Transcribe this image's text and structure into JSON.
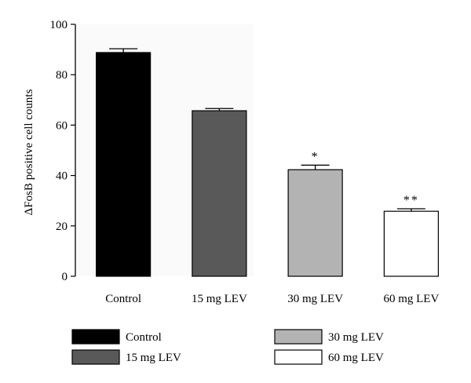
{
  "chart_data": {
    "type": "bar",
    "title": "",
    "xlabel": "",
    "ylabel": "ΔFosB positive cell counts",
    "ylim": [
      0,
      100
    ],
    "yticks": [
      0,
      20,
      40,
      60,
      80,
      100
    ],
    "categories": [
      "Control",
      "15 mg LEV",
      "30 mg LEV",
      "60 mg LEV"
    ],
    "values": [
      88.8,
      65.7,
      42.3,
      25.8
    ],
    "errors": [
      1.5,
      0.9,
      1.8,
      1.0
    ],
    "significance": [
      "",
      "",
      "*",
      "**"
    ],
    "colors": [
      "#000000",
      "#595959",
      "#b3b3b3",
      "#ffffff"
    ],
    "grid": false,
    "legend": {
      "placement": "bottom",
      "entries": [
        "Control",
        "15 mg LEV",
        "30 mg LEV",
        "60 mg LEV"
      ]
    }
  }
}
